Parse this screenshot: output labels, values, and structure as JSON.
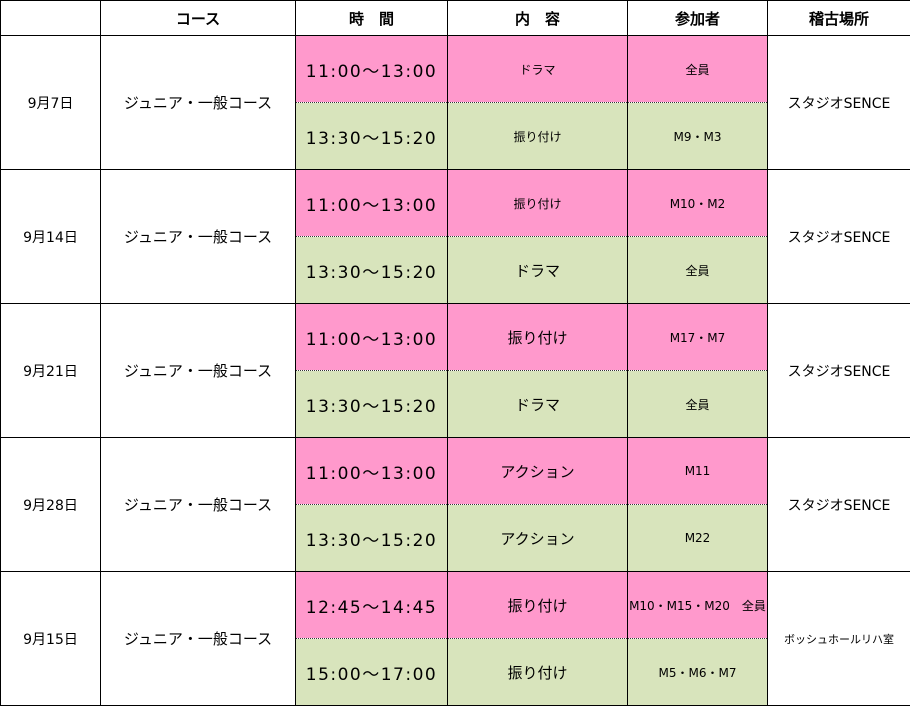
{
  "header": {
    "blank": "",
    "course": "コース",
    "time": "時　間",
    "content": "内　容",
    "participants": "参加者",
    "place": "稽古場所"
  },
  "colors": {
    "first_session": "#ff99cc",
    "second_session": "#d8e4bc"
  },
  "schedule": [
    {
      "date": "9月7日",
      "course": "ジュニア・一般コース",
      "place": "スタジオSENCE",
      "sessions": [
        {
          "time": "11:00～13:00",
          "content": "ドラマ",
          "participants": "全員"
        },
        {
          "time": "13:30～15:20",
          "content": "振り付け",
          "participants": "M9・M3"
        }
      ]
    },
    {
      "date": "9月14日",
      "course": "ジュニア・一般コース",
      "place": "スタジオSENCE",
      "sessions": [
        {
          "time": "11:00～13:00",
          "content": "振り付け",
          "participants": "M10・M2"
        },
        {
          "time": "13:30～15:20",
          "content": "ドラマ",
          "participants": "全員"
        }
      ]
    },
    {
      "date": "9月21日",
      "course": "ジュニア・一般コース",
      "place": "スタジオSENCE",
      "sessions": [
        {
          "time": "11:00～13:00",
          "content": "振り付け",
          "participants": "M17・M7"
        },
        {
          "time": "13:30～15:20",
          "content": "ドラマ",
          "participants": "全員"
        }
      ]
    },
    {
      "date": "9月28日",
      "course": "ジュニア・一般コース",
      "place": "スタジオSENCE",
      "sessions": [
        {
          "time": "11:00～13:00",
          "content": "アクション",
          "participants": "M11"
        },
        {
          "time": "13:30～15:20",
          "content": "アクション",
          "participants": "M22"
        }
      ]
    },
    {
      "date": "9月15日",
      "course": "ジュニア・一般コース",
      "place": "ボッシュホールリハ室",
      "sessions": [
        {
          "time": "12:45～14:45",
          "content": "振り付け",
          "participants": "M10・M15・M20　全員"
        },
        {
          "time": "15:00～17:00",
          "content": "振り付け",
          "participants": "M5・M6・M7"
        }
      ]
    }
  ]
}
